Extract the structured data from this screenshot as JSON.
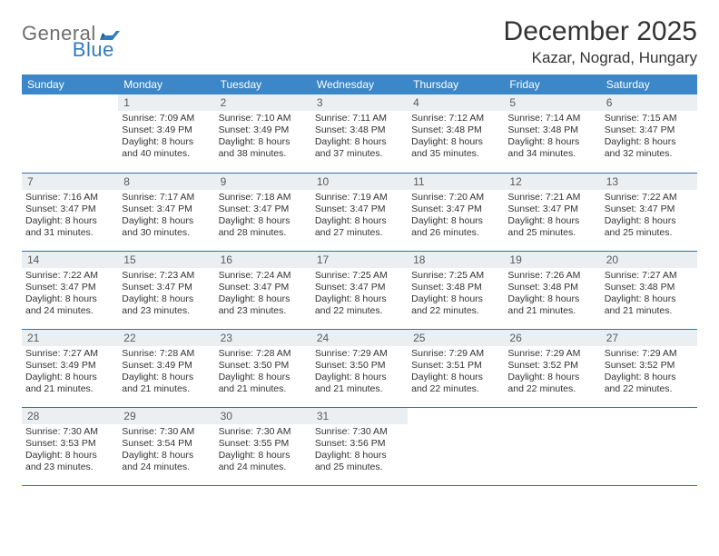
{
  "brand": {
    "part1": "General",
    "part2": "Blue"
  },
  "title": "December 2025",
  "location": "Kazar, Nograd, Hungary",
  "colors": {
    "header_bg": "#3b87c8",
    "header_text": "#ffffff",
    "daynum_bg": "#eceff1",
    "rule": "#3b6fa0",
    "brand_gray": "#6e6e6e",
    "brand_blue": "#2f7bbf"
  },
  "weekdays": [
    "Sunday",
    "Monday",
    "Tuesday",
    "Wednesday",
    "Thursday",
    "Friday",
    "Saturday"
  ],
  "weeks": [
    [
      {
        "day": "",
        "sunrise": "",
        "sunset": "",
        "daylight": ""
      },
      {
        "day": "1",
        "sunrise": "Sunrise: 7:09 AM",
        "sunset": "Sunset: 3:49 PM",
        "daylight": "Daylight: 8 hours and 40 minutes."
      },
      {
        "day": "2",
        "sunrise": "Sunrise: 7:10 AM",
        "sunset": "Sunset: 3:49 PM",
        "daylight": "Daylight: 8 hours and 38 minutes."
      },
      {
        "day": "3",
        "sunrise": "Sunrise: 7:11 AM",
        "sunset": "Sunset: 3:48 PM",
        "daylight": "Daylight: 8 hours and 37 minutes."
      },
      {
        "day": "4",
        "sunrise": "Sunrise: 7:12 AM",
        "sunset": "Sunset: 3:48 PM",
        "daylight": "Daylight: 8 hours and 35 minutes."
      },
      {
        "day": "5",
        "sunrise": "Sunrise: 7:14 AM",
        "sunset": "Sunset: 3:48 PM",
        "daylight": "Daylight: 8 hours and 34 minutes."
      },
      {
        "day": "6",
        "sunrise": "Sunrise: 7:15 AM",
        "sunset": "Sunset: 3:47 PM",
        "daylight": "Daylight: 8 hours and 32 minutes."
      }
    ],
    [
      {
        "day": "7",
        "sunrise": "Sunrise: 7:16 AM",
        "sunset": "Sunset: 3:47 PM",
        "daylight": "Daylight: 8 hours and 31 minutes."
      },
      {
        "day": "8",
        "sunrise": "Sunrise: 7:17 AM",
        "sunset": "Sunset: 3:47 PM",
        "daylight": "Daylight: 8 hours and 30 minutes."
      },
      {
        "day": "9",
        "sunrise": "Sunrise: 7:18 AM",
        "sunset": "Sunset: 3:47 PM",
        "daylight": "Daylight: 8 hours and 28 minutes."
      },
      {
        "day": "10",
        "sunrise": "Sunrise: 7:19 AM",
        "sunset": "Sunset: 3:47 PM",
        "daylight": "Daylight: 8 hours and 27 minutes."
      },
      {
        "day": "11",
        "sunrise": "Sunrise: 7:20 AM",
        "sunset": "Sunset: 3:47 PM",
        "daylight": "Daylight: 8 hours and 26 minutes."
      },
      {
        "day": "12",
        "sunrise": "Sunrise: 7:21 AM",
        "sunset": "Sunset: 3:47 PM",
        "daylight": "Daylight: 8 hours and 25 minutes."
      },
      {
        "day": "13",
        "sunrise": "Sunrise: 7:22 AM",
        "sunset": "Sunset: 3:47 PM",
        "daylight": "Daylight: 8 hours and 25 minutes."
      }
    ],
    [
      {
        "day": "14",
        "sunrise": "Sunrise: 7:22 AM",
        "sunset": "Sunset: 3:47 PM",
        "daylight": "Daylight: 8 hours and 24 minutes."
      },
      {
        "day": "15",
        "sunrise": "Sunrise: 7:23 AM",
        "sunset": "Sunset: 3:47 PM",
        "daylight": "Daylight: 8 hours and 23 minutes."
      },
      {
        "day": "16",
        "sunrise": "Sunrise: 7:24 AM",
        "sunset": "Sunset: 3:47 PM",
        "daylight": "Daylight: 8 hours and 23 minutes."
      },
      {
        "day": "17",
        "sunrise": "Sunrise: 7:25 AM",
        "sunset": "Sunset: 3:47 PM",
        "daylight": "Daylight: 8 hours and 22 minutes."
      },
      {
        "day": "18",
        "sunrise": "Sunrise: 7:25 AM",
        "sunset": "Sunset: 3:48 PM",
        "daylight": "Daylight: 8 hours and 22 minutes."
      },
      {
        "day": "19",
        "sunrise": "Sunrise: 7:26 AM",
        "sunset": "Sunset: 3:48 PM",
        "daylight": "Daylight: 8 hours and 21 minutes."
      },
      {
        "day": "20",
        "sunrise": "Sunrise: 7:27 AM",
        "sunset": "Sunset: 3:48 PM",
        "daylight": "Daylight: 8 hours and 21 minutes."
      }
    ],
    [
      {
        "day": "21",
        "sunrise": "Sunrise: 7:27 AM",
        "sunset": "Sunset: 3:49 PM",
        "daylight": "Daylight: 8 hours and 21 minutes."
      },
      {
        "day": "22",
        "sunrise": "Sunrise: 7:28 AM",
        "sunset": "Sunset: 3:49 PM",
        "daylight": "Daylight: 8 hours and 21 minutes."
      },
      {
        "day": "23",
        "sunrise": "Sunrise: 7:28 AM",
        "sunset": "Sunset: 3:50 PM",
        "daylight": "Daylight: 8 hours and 21 minutes."
      },
      {
        "day": "24",
        "sunrise": "Sunrise: 7:29 AM",
        "sunset": "Sunset: 3:50 PM",
        "daylight": "Daylight: 8 hours and 21 minutes."
      },
      {
        "day": "25",
        "sunrise": "Sunrise: 7:29 AM",
        "sunset": "Sunset: 3:51 PM",
        "daylight": "Daylight: 8 hours and 22 minutes."
      },
      {
        "day": "26",
        "sunrise": "Sunrise: 7:29 AM",
        "sunset": "Sunset: 3:52 PM",
        "daylight": "Daylight: 8 hours and 22 minutes."
      },
      {
        "day": "27",
        "sunrise": "Sunrise: 7:29 AM",
        "sunset": "Sunset: 3:52 PM",
        "daylight": "Daylight: 8 hours and 22 minutes."
      }
    ],
    [
      {
        "day": "28",
        "sunrise": "Sunrise: 7:30 AM",
        "sunset": "Sunset: 3:53 PM",
        "daylight": "Daylight: 8 hours and 23 minutes."
      },
      {
        "day": "29",
        "sunrise": "Sunrise: 7:30 AM",
        "sunset": "Sunset: 3:54 PM",
        "daylight": "Daylight: 8 hours and 24 minutes."
      },
      {
        "day": "30",
        "sunrise": "Sunrise: 7:30 AM",
        "sunset": "Sunset: 3:55 PM",
        "daylight": "Daylight: 8 hours and 24 minutes."
      },
      {
        "day": "31",
        "sunrise": "Sunrise: 7:30 AM",
        "sunset": "Sunset: 3:56 PM",
        "daylight": "Daylight: 8 hours and 25 minutes."
      },
      {
        "day": "",
        "sunrise": "",
        "sunset": "",
        "daylight": ""
      },
      {
        "day": "",
        "sunrise": "",
        "sunset": "",
        "daylight": ""
      },
      {
        "day": "",
        "sunrise": "",
        "sunset": "",
        "daylight": ""
      }
    ]
  ]
}
